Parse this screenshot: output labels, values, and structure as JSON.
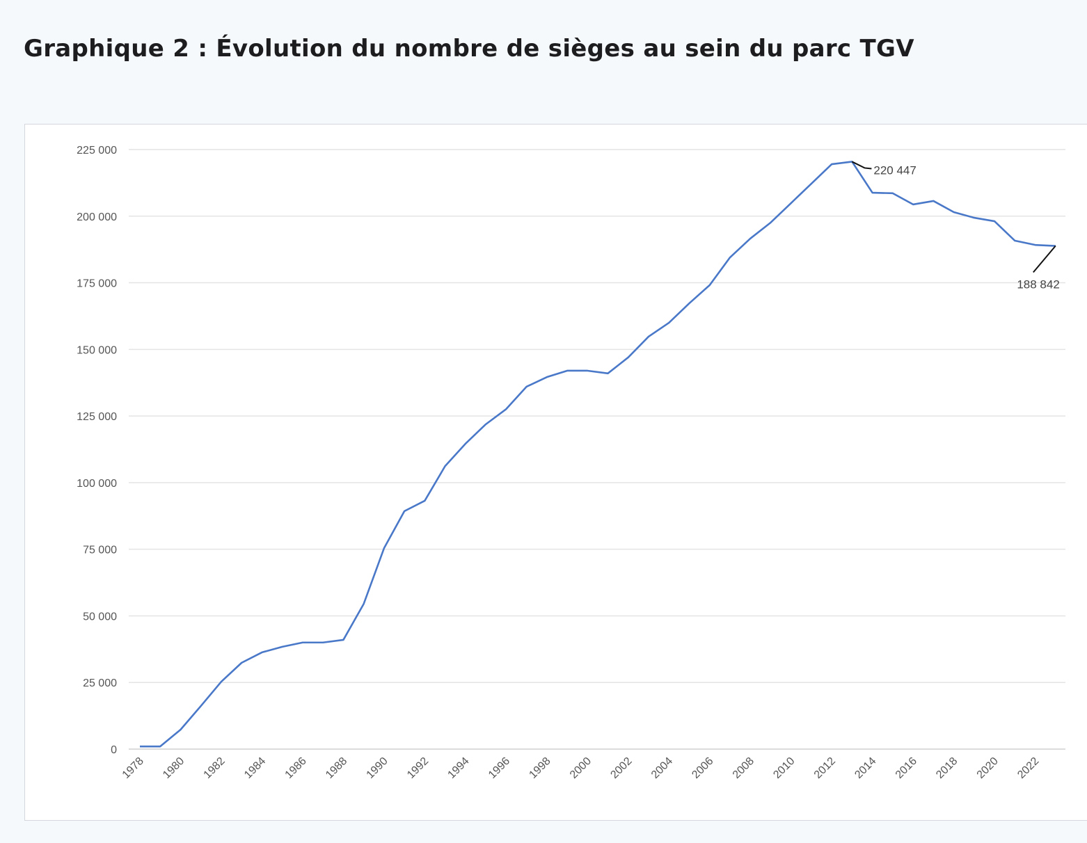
{
  "title": "Graphique 2 : Évolution du nombre de sièges au sein du parc TGV",
  "chart_data": {
    "type": "line",
    "title": "Graphique 2 : Évolution du nombre de sièges au sein du parc TGV",
    "xlabel": "",
    "ylabel": "",
    "ylim": [
      0,
      225000
    ],
    "grid": true,
    "legend": "none",
    "y_ticks": [
      "0",
      "25 000",
      "50 000",
      "75 000",
      "100 000",
      "125 000",
      "150 000",
      "175 000",
      "200 000",
      "225 000"
    ],
    "y_tick_values": [
      0,
      25000,
      50000,
      75000,
      100000,
      125000,
      150000,
      175000,
      200000,
      225000
    ],
    "x_ticks": [
      "1978",
      "1980",
      "1982",
      "1984",
      "1986",
      "1988",
      "1990",
      "1992",
      "1994",
      "1996",
      "1998",
      "2000",
      "2002",
      "2004",
      "2006",
      "2008",
      "2010",
      "2012",
      "2014",
      "2016",
      "2018",
      "2020",
      "2022"
    ],
    "x": [
      1978,
      1979,
      1980,
      1981,
      1982,
      1983,
      1984,
      1985,
      1986,
      1987,
      1988,
      1989,
      1990,
      1991,
      1992,
      1993,
      1994,
      1995,
      1996,
      1997,
      1998,
      1999,
      2000,
      2001,
      2002,
      2003,
      2004,
      2005,
      2006,
      2007,
      2008,
      2009,
      2010,
      2011,
      2012,
      2013,
      2014,
      2015,
      2016,
      2017,
      2018,
      2019,
      2020,
      2021,
      2022,
      2023
    ],
    "series": [
      {
        "name": "Nombre de sièges",
        "color": "#4a78c8",
        "values": [
          1000,
          1000,
          7300,
          16200,
          25300,
          32400,
          36300,
          38400,
          40000,
          40000,
          41000,
          54500,
          75400,
          89300,
          93200,
          106200,
          114600,
          121900,
          127600,
          136000,
          139600,
          142000,
          142000,
          141000,
          147000,
          154800,
          160000,
          167300,
          174100,
          184500,
          191600,
          197600,
          204900,
          212200,
          219500,
          220447,
          208800,
          208600,
          204400,
          205700,
          201500,
          199400,
          198100,
          190800,
          189200,
          188842
        ]
      }
    ],
    "annotations": [
      {
        "x": 2013,
        "value": 220447,
        "label": "220 447"
      },
      {
        "x": 2023,
        "value": 188842,
        "label": "188 842"
      }
    ]
  }
}
